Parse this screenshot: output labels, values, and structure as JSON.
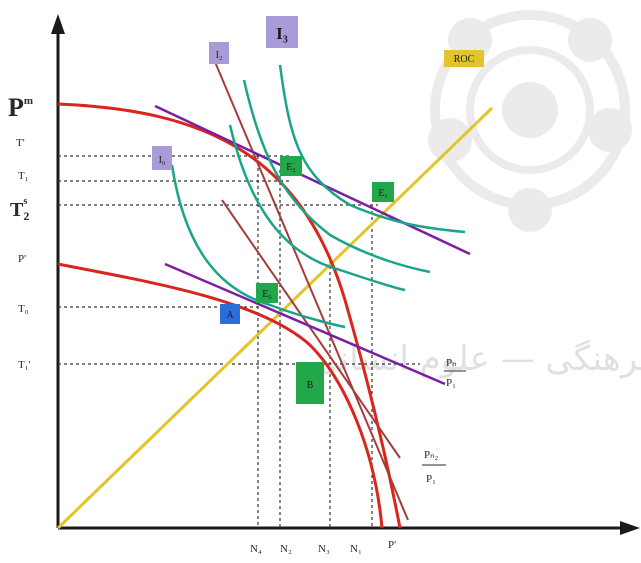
{
  "y_axis": {
    "title": "P",
    "title_sup": "m",
    "ticks": [
      "T'",
      "T₁",
      "T",
      "P'",
      "T₀",
      "T₁'"
    ],
    "t2": {
      "base": "T",
      "sub": "2",
      "sup": "s"
    }
  },
  "x_axis": {
    "ticks": [
      "N₄",
      "N₂",
      "N₃",
      "N₁",
      "P'"
    ]
  },
  "curve_labels": {
    "roc": "ROC",
    "i3": "I₃",
    "i2": "I₂",
    "i0": "I₀",
    "ratio_top": {
      "num": "Pₙ",
      "den": "P₁"
    },
    "ratio_bottom": {
      "num": "Pₙ₂",
      "den": "P₁"
    }
  },
  "points": {
    "e1": "E₁",
    "e2": "E₂",
    "e0": "E₀",
    "a": "A",
    "b": "B"
  },
  "watermark": "ومطالعات فرهنگی — علوم انسانی",
  "colors": {
    "ppf": "#d9261c",
    "price_line": "#7a1fa2",
    "budget_line": "#a63b3b",
    "indifference": "#1aa58a",
    "roc": "#e2c52a",
    "label_box": "#a99ad8",
    "point_box": "#22a84a",
    "point_box_blue": "#2a6fd6",
    "axis": "#1a1a1a"
  }
}
